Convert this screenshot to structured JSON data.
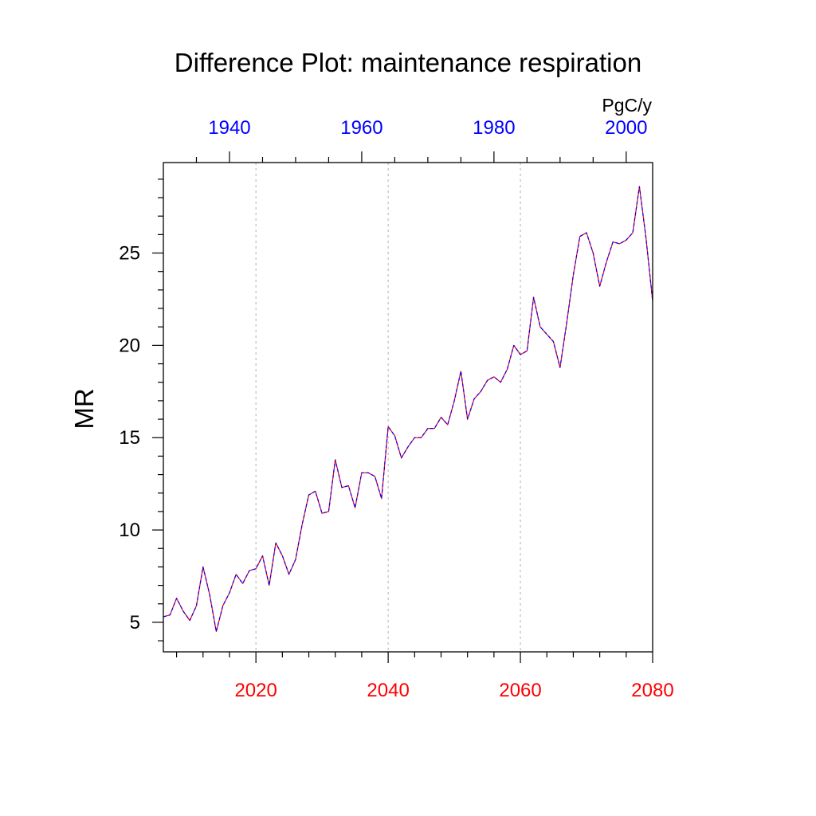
{
  "chart_data": {
    "type": "line",
    "title": "Difference Plot: maintenance respiration",
    "ylabel": "MR",
    "units": "PgC/y",
    "ylim": [
      3.4,
      29.9
    ],
    "y_ticks": [
      5,
      10,
      15,
      20,
      25
    ],
    "bottom_axis": {
      "color": "#ff0000",
      "xlim": [
        2006,
        2080
      ],
      "ticks": [
        2020,
        2040,
        2060,
        2080
      ],
      "labels": [
        "2020",
        "2040",
        "2060",
        "2080"
      ]
    },
    "top_axis": {
      "color": "#0000ff",
      "xlim": [
        1930,
        2004
      ],
      "ticks": [
        1940,
        1960,
        1980,
        2000
      ],
      "labels": [
        "1940",
        "1960",
        "1980",
        "2000"
      ]
    },
    "grid": "vertical dashed at major bottom ticks",
    "series": [
      {
        "color_solid": "#ff0000",
        "color_dashed": "#0000ff",
        "x": [
          2006,
          2007,
          2008,
          2009,
          2010,
          2011,
          2012,
          2013,
          2014,
          2015,
          2016,
          2017,
          2018,
          2019,
          2020,
          2021,
          2022,
          2023,
          2024,
          2025,
          2026,
          2027,
          2028,
          2029,
          2030,
          2031,
          2032,
          2033,
          2034,
          2035,
          2036,
          2037,
          2038,
          2039,
          2040,
          2041,
          2042,
          2043,
          2044,
          2045,
          2046,
          2047,
          2048,
          2049,
          2050,
          2051,
          2052,
          2053,
          2054,
          2055,
          2056,
          2057,
          2058,
          2059,
          2060,
          2061,
          2062,
          2063,
          2064,
          2065,
          2066,
          2067,
          2068,
          2069,
          2070,
          2071,
          2072,
          2073,
          2074,
          2075,
          2076,
          2077,
          2078,
          2079,
          2080
        ],
        "y": [
          5.3,
          5.4,
          6.3,
          5.6,
          5.1,
          5.9,
          8.0,
          6.5,
          4.5,
          5.9,
          6.6,
          7.6,
          7.1,
          7.8,
          7.9,
          8.6,
          7.0,
          9.3,
          8.6,
          7.6,
          8.4,
          10.3,
          11.9,
          12.1,
          10.9,
          11.0,
          13.8,
          12.3,
          12.4,
          11.2,
          13.1,
          13.1,
          12.9,
          11.7,
          15.6,
          15.1,
          13.9,
          14.5,
          15.0,
          15.0,
          15.5,
          15.5,
          16.1,
          15.7,
          17.0,
          18.6,
          16.0,
          17.1,
          17.5,
          18.1,
          18.3,
          18.0,
          18.7,
          20.0,
          19.5,
          19.7,
          22.6,
          21.0,
          20.6,
          20.2,
          18.8,
          21.2,
          23.8,
          25.9,
          26.1,
          25.0,
          23.2,
          24.5,
          25.6,
          25.5,
          25.7,
          26.1,
          28.6,
          25.8,
          22.4
        ]
      }
    ]
  }
}
